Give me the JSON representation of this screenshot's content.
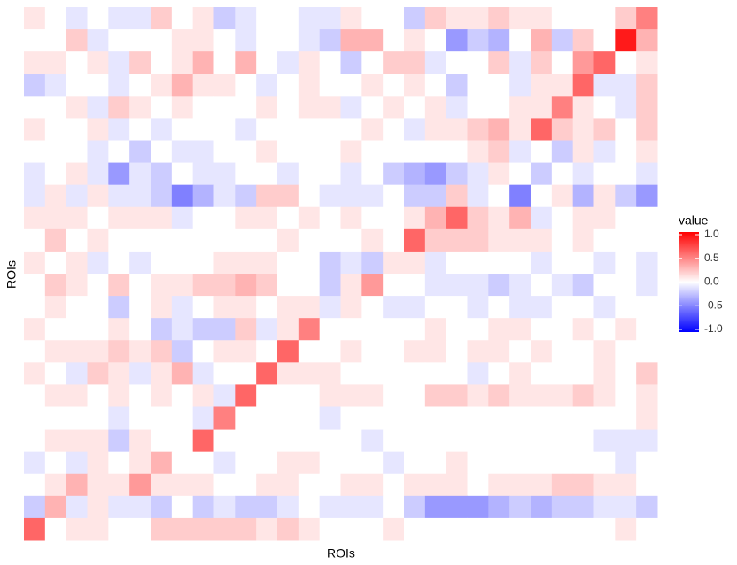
{
  "chart_data": {
    "type": "heatmap",
    "x_label": "ROIs",
    "y_label": "ROIs",
    "legend_title": "value",
    "clim": [
      -1,
      1
    ],
    "cticks": [
      {
        "value": 1,
        "label": "1.0"
      },
      0.5,
      {
        "value": 0,
        "label": "0.0"
      },
      -0.5,
      {
        "value": -1,
        "label": "-1.0"
      }
    ],
    "colors": {
      "low": "#0000ff",
      "mid": "#ffffff",
      "high": "#ff0000"
    },
    "values": [
      [
        0.1,
        0,
        -0.1,
        0,
        -0.1,
        -0.1,
        0.2,
        0,
        0.1,
        -0.2,
        -0.1,
        0,
        0,
        -0.1,
        -0.1,
        0.1,
        0,
        0,
        -0.2,
        0.2,
        0.1,
        0.1,
        0.2,
        0.1,
        0.1,
        0,
        0,
        0,
        0.2,
        0.5
      ],
      [
        0,
        0,
        0.2,
        -0.1,
        0,
        0,
        0,
        0.1,
        0.1,
        0,
        -0.1,
        0,
        0,
        -0.1,
        -0.2,
        0.3,
        0.3,
        0,
        0.1,
        0,
        -0.4,
        -0.2,
        -0.3,
        0,
        0.3,
        -0.2,
        0.2,
        0,
        0.9,
        0.3
      ],
      [
        0.1,
        0.1,
        0,
        0.1,
        -0.1,
        0.2,
        0,
        0.1,
        0.3,
        0,
        0.3,
        0,
        -0.1,
        0.1,
        0,
        -0.2,
        0,
        0.2,
        0.2,
        -0.1,
        0,
        0,
        0.2,
        -0.1,
        0.2,
        0,
        0.4,
        0.6,
        0,
        0.1
      ],
      [
        -0.2,
        -0.1,
        0,
        0,
        -0.1,
        0,
        0.1,
        0.3,
        0.1,
        0.1,
        0,
        -0.1,
        0,
        0.1,
        0,
        0,
        0.1,
        0,
        0.1,
        0,
        -0.2,
        0,
        0,
        -0.1,
        0.1,
        0.1,
        0.6,
        -0.1,
        -0.1,
        0.2
      ],
      [
        0,
        0,
        0.1,
        -0.1,
        0.2,
        0.1,
        0,
        0.1,
        0,
        0,
        0,
        0.1,
        0,
        0.1,
        0.1,
        -0.1,
        0,
        0.1,
        0,
        0.1,
        -0.1,
        0,
        0,
        0.1,
        0.1,
        0.5,
        0.1,
        0,
        -0.1,
        0.2
      ],
      [
        0.1,
        0,
        0,
        0.1,
        -0.1,
        0,
        -0.1,
        0,
        0,
        0,
        -0.1,
        0,
        0,
        0,
        0,
        0,
        0.1,
        0,
        -0.1,
        0.1,
        0.1,
        0.2,
        0.3,
        0.1,
        0.6,
        0.2,
        0.1,
        0.2,
        0,
        0.2
      ],
      [
        0,
        0,
        0,
        -0.1,
        0,
        -0.2,
        0,
        -0.1,
        -0.1,
        0,
        0,
        0.1,
        0,
        0,
        0,
        0.1,
        0,
        0,
        0,
        0,
        0,
        0.1,
        0.2,
        -0.1,
        0,
        -0.2,
        0.1,
        -0.1,
        0,
        0.1
      ],
      [
        -0.1,
        0,
        0.1,
        -0.1,
        -0.4,
        -0.1,
        -0.2,
        0,
        -0.1,
        -0.1,
        0,
        0,
        -0.1,
        0,
        0,
        -0.1,
        0,
        -0.2,
        -0.3,
        -0.4,
        -0.2,
        -0.1,
        0.1,
        0,
        -0.2,
        0,
        -0.1,
        0,
        0,
        -0.1
      ],
      [
        -0.1,
        0.1,
        -0.1,
        0.1,
        -0.1,
        -0.1,
        -0.2,
        -0.5,
        -0.3,
        -0.1,
        -0.2,
        0.2,
        0.2,
        0,
        -0.1,
        -0.1,
        -0.1,
        0,
        -0.2,
        -0.2,
        0.2,
        -0.1,
        0,
        -0.5,
        0,
        0.1,
        -0.3,
        0.1,
        -0.2,
        -0.4
      ],
      [
        0.1,
        0.1,
        0.1,
        0,
        0.1,
        0.1,
        0.1,
        -0.1,
        0,
        0,
        0.1,
        0.1,
        0,
        0.1,
        0,
        0.1,
        0,
        0,
        0.1,
        0.3,
        0.6,
        0.2,
        0.1,
        0.3,
        -0.1,
        0,
        0.1,
        0.1,
        0,
        0
      ],
      [
        0,
        0.2,
        0,
        0.1,
        0,
        0,
        0,
        0,
        0,
        0,
        0,
        0,
        0.1,
        0,
        0,
        0,
        0.1,
        0,
        0.6,
        0.2,
        0.2,
        0.2,
        0.1,
        0.1,
        0.1,
        0,
        0.1,
        0,
        0,
        0
      ],
      [
        0.1,
        0,
        0.1,
        -0.1,
        0,
        -0.1,
        0,
        0,
        0,
        0.1,
        0.1,
        0.1,
        0,
        0,
        -0.2,
        -0.1,
        -0.2,
        0.1,
        0.1,
        -0.1,
        0,
        0,
        0,
        0,
        -0.1,
        0,
        0,
        -0.1,
        0,
        -0.1
      ],
      [
        0,
        0.2,
        0.1,
        0,
        0.2,
        0,
        0.1,
        0.1,
        0.2,
        0.2,
        0.3,
        0.2,
        0,
        0,
        -0.2,
        0.1,
        0.4,
        0,
        0,
        -0.1,
        -0.1,
        -0.1,
        -0.2,
        -0.1,
        0,
        -0.1,
        -0.2,
        0,
        0,
        -0.1
      ],
      [
        0,
        0.1,
        0,
        0,
        -0.2,
        0,
        0.1,
        -0.1,
        0,
        0.1,
        0.1,
        0,
        0.1,
        0.1,
        -0.1,
        0.1,
        0,
        -0.1,
        -0.1,
        0,
        0,
        -0.1,
        0,
        -0.1,
        -0.1,
        0,
        0,
        -0.1,
        0,
        0
      ],
      [
        0.1,
        0,
        0,
        0,
        0.1,
        0,
        -0.2,
        -0.1,
        -0.2,
        -0.2,
        0.2,
        -0.1,
        0.1,
        0.5,
        0,
        0,
        0,
        0,
        0,
        0.1,
        0,
        0,
        0.1,
        0.1,
        0,
        0,
        0.1,
        0,
        0.1,
        0
      ],
      [
        0,
        0.1,
        0.1,
        0.1,
        0.2,
        0.1,
        0.2,
        -0.2,
        0,
        0.1,
        0.1,
        0,
        0.6,
        0,
        0,
        0.1,
        0,
        0,
        0.1,
        0.1,
        0,
        0.1,
        0.1,
        0,
        0.1,
        0,
        0,
        0.1,
        0,
        0
      ],
      [
        0.1,
        0,
        -0.1,
        0.2,
        0.1,
        -0.1,
        0.1,
        0.3,
        -0.1,
        0,
        0,
        0.6,
        0.1,
        0.1,
        0.1,
        0,
        0,
        0,
        0,
        0,
        0,
        -0.1,
        0,
        0.1,
        0,
        0,
        0,
        0.1,
        0,
        0.2
      ],
      [
        0,
        0.1,
        0.1,
        0,
        0.1,
        0,
        0.1,
        0,
        0.1,
        -0.1,
        0.6,
        0,
        0,
        0,
        0.1,
        0.1,
        0.1,
        0,
        0,
        0.2,
        0.2,
        0.1,
        0.2,
        0.1,
        0.1,
        0.1,
        0.2,
        0.1,
        0,
        0.1
      ],
      [
        0,
        0,
        0,
        0,
        -0.1,
        0,
        0,
        0,
        -0.1,
        0.5,
        0,
        0,
        0,
        0,
        -0.1,
        0,
        0,
        0,
        0,
        0,
        0,
        0,
        0,
        0,
        0,
        0,
        0,
        0,
        0,
        0.1
      ],
      [
        0,
        0.1,
        0.1,
        0.1,
        -0.2,
        0.1,
        0,
        0,
        0.6,
        0,
        0,
        0,
        0,
        0,
        0,
        0,
        -0.1,
        0,
        0,
        0,
        0,
        0,
        0,
        0,
        0,
        0,
        0,
        -0.1,
        -0.1,
        -0.1
      ],
      [
        -0.1,
        0,
        -0.1,
        0.1,
        0,
        0.1,
        0.3,
        0,
        0,
        -0.1,
        0,
        0,
        0.1,
        0.1,
        0,
        0,
        0,
        -0.1,
        0,
        0,
        0.1,
        0,
        0,
        0,
        0,
        0,
        0,
        0,
        -0.1,
        0
      ],
      [
        0,
        0.1,
        0.3,
        0.1,
        0.1,
        0.4,
        0.1,
        0.1,
        0.1,
        0,
        0,
        0.1,
        0.1,
        0,
        0,
        0.1,
        0.1,
        0,
        0.1,
        0.1,
        0.1,
        0,
        0.1,
        0.1,
        0.1,
        0.2,
        0.2,
        0.1,
        0.1,
        0
      ],
      [
        -0.2,
        0.3,
        -0.1,
        0.1,
        -0.1,
        -0.1,
        -0.2,
        0,
        -0.2,
        -0.1,
        -0.2,
        -0.2,
        -0.1,
        0,
        -0.1,
        -0.1,
        -0.1,
        0,
        -0.2,
        -0.4,
        -0.4,
        -0.4,
        -0.3,
        -0.2,
        -0.3,
        -0.2,
        -0.2,
        -0.1,
        -0.1,
        -0.2
      ],
      [
        0.6,
        0,
        0.1,
        0.1,
        0,
        0,
        0.2,
        0.2,
        0.2,
        0.2,
        0.2,
        0.1,
        0.2,
        0.1,
        0,
        0,
        0,
        0.1,
        0,
        0,
        0,
        0,
        0,
        0,
        0,
        0,
        0,
        0,
        0.1,
        0
      ]
    ]
  }
}
